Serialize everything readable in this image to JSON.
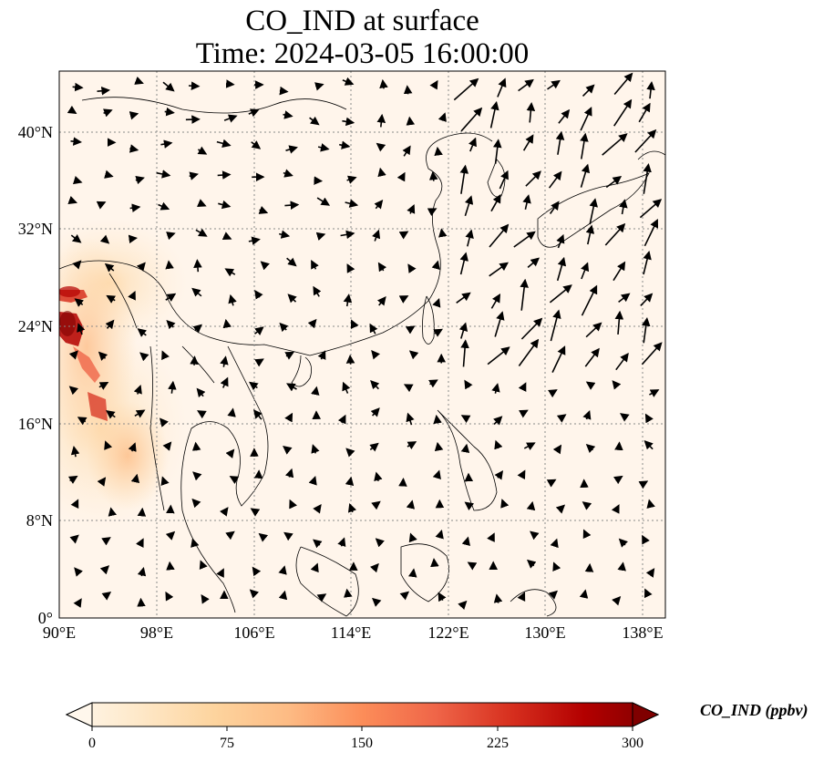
{
  "title": {
    "line1": "CO_IND at surface",
    "line2": "Time: 2024-03-05 16:00:00"
  },
  "map": {
    "lon_range": [
      90,
      140
    ],
    "lat_range": [
      0,
      45
    ],
    "x_ticks": [
      "90°E",
      "98°E",
      "106°E",
      "114°E",
      "122°E",
      "130°E",
      "138°E"
    ],
    "y_ticks": [
      "0°",
      "8°N",
      "16°N",
      "24°N",
      "32°N",
      "40°N"
    ],
    "gridlines": "dotted",
    "background_color": "#fff5eb",
    "high_concentration_region": "western edge (Myanmar / Bangladesh / Bay of Bengal)"
  },
  "colorbar": {
    "label": "CO_IND (ppbv)",
    "ticks": [
      "0",
      "75",
      "150",
      "225",
      "300"
    ],
    "range": [
      0,
      300
    ],
    "colormap": "OrRd",
    "extend": "both",
    "colors": [
      "#fff7ec",
      "#fee8c8",
      "#fdd49e",
      "#fdbb84",
      "#fc8d59",
      "#ef6548",
      "#d7301f",
      "#b30000",
      "#7f0000"
    ]
  }
}
